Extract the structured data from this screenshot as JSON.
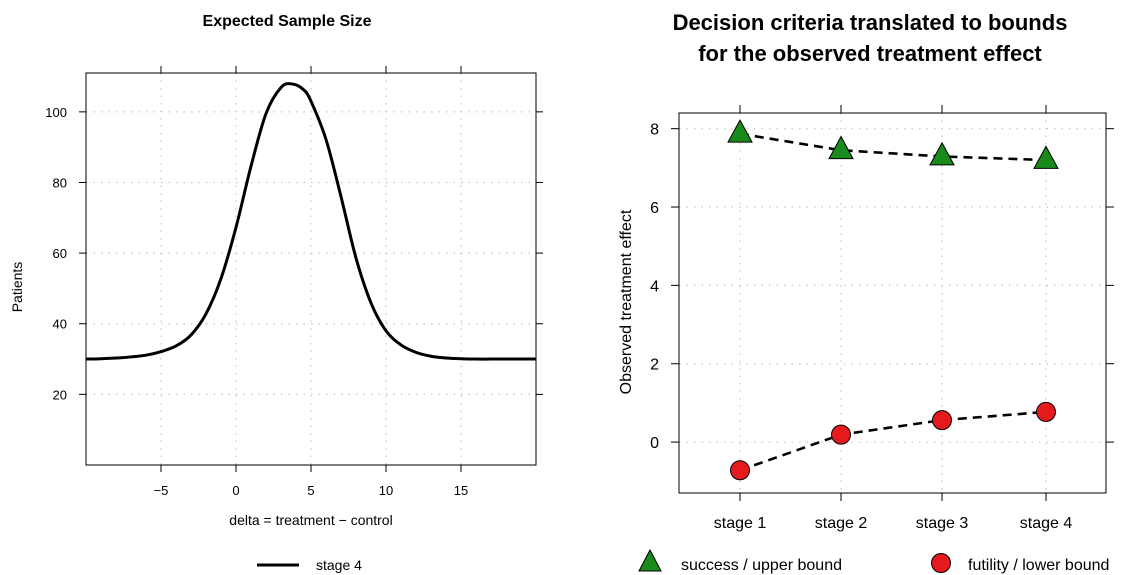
{
  "chart_data": [
    {
      "type": "line",
      "title": "Expected Sample Size",
      "xlabel": "delta = treatment − control",
      "ylabel": "Patients",
      "xlim": [
        -10,
        20
      ],
      "ylim": [
        0,
        111
      ],
      "xticks": [
        -5,
        0,
        5,
        10,
        15
      ],
      "xtick_labels": [
        "−5",
        "0",
        "5",
        "10",
        "15"
      ],
      "yticks": [
        20,
        40,
        60,
        80,
        100
      ],
      "ytick_labels": [
        "20",
        "40",
        "60",
        "80",
        "100"
      ],
      "grid": true,
      "legend_position": "bottom",
      "series": [
        {
          "name": "stage 4",
          "color": "#000000",
          "x": [
            -10,
            -9,
            -8,
            -7,
            -6,
            -5,
            -4,
            -3,
            -2,
            -1,
            0,
            1,
            2,
            3,
            3.75,
            4.5,
            5,
            6,
            7,
            8,
            9,
            10,
            11,
            12,
            13,
            14,
            15,
            16,
            17,
            18,
            19,
            20
          ],
          "y": [
            30.0,
            30.1,
            30.3,
            30.6,
            31.1,
            32.1,
            33.7,
            36.8,
            42.8,
            52.8,
            67.3,
            84.6,
            99.5,
            106.9,
            107.9,
            106.3,
            103.0,
            92.2,
            76.0,
            58.6,
            45.9,
            38.0,
            34.0,
            31.9,
            30.8,
            30.3,
            30.1,
            30.0,
            30.0,
            30.0,
            30.0,
            30.0
          ]
        }
      ]
    },
    {
      "type": "line",
      "title": [
        "Decision criteria translated to bounds",
        "for the observed treatment effect"
      ],
      "xlabel": "",
      "ylabel": "Observed treatment effect",
      "categories": [
        "stage 1",
        "stage 2",
        "stage 3",
        "stage 4"
      ],
      "ylim": [
        -1.3,
        8.4
      ],
      "yticks": [
        0,
        2,
        4,
        6,
        8
      ],
      "ytick_labels": [
        "0",
        "2",
        "4",
        "6",
        "8"
      ],
      "grid": true,
      "legend_position": "bottom",
      "series": [
        {
          "name": "success / upper bound",
          "marker": "triangle",
          "color": "#1a8a1a",
          "values": [
            7.87,
            7.45,
            7.29,
            7.2
          ]
        },
        {
          "name": "futility / lower bound",
          "marker": "circle",
          "color": "#e41a1c",
          "values": [
            -0.72,
            0.19,
            0.56,
            0.77
          ]
        }
      ]
    }
  ]
}
